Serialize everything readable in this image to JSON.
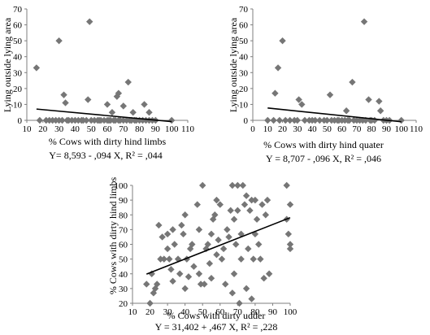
{
  "chart_data": [
    {
      "type": "scatter",
      "title": "",
      "xlabel": "% Cows with dirty hind limbs",
      "ylabel": "Lying outside lying area",
      "equation": "Y= 8,593 - ,094 X, R² = ,044",
      "xlim": [
        10,
        110
      ],
      "ylim": [
        0,
        70
      ],
      "xticks": [
        "10",
        "20",
        "30",
        "40",
        "50",
        "60",
        "70",
        "80",
        "90",
        "100",
        "110"
      ],
      "yticks": [
        "0",
        "10",
        "20",
        "30",
        "40",
        "50",
        "60",
        "70"
      ],
      "marker_color": "#767676",
      "grid": false,
      "trendline": {
        "intercept": 8.593,
        "slope": -0.094
      },
      "points": [
        [
          16,
          33
        ],
        [
          30,
          50
        ],
        [
          33,
          16
        ],
        [
          34,
          11
        ],
        [
          48,
          13
        ],
        [
          49,
          62
        ],
        [
          60,
          10
        ],
        [
          63,
          5
        ],
        [
          66,
          15
        ],
        [
          67,
          17
        ],
        [
          70,
          9
        ],
        [
          73,
          24
        ],
        [
          76,
          5
        ],
        [
          83,
          10
        ],
        [
          86,
          5
        ],
        [
          18,
          0
        ],
        [
          22,
          0
        ],
        [
          24,
          0
        ],
        [
          26,
          0
        ],
        [
          28,
          0
        ],
        [
          30,
          0
        ],
        [
          32,
          0
        ],
        [
          35,
          0
        ],
        [
          36,
          0
        ],
        [
          38,
          0
        ],
        [
          40,
          0
        ],
        [
          42,
          0
        ],
        [
          44,
          0
        ],
        [
          45,
          0
        ],
        [
          47,
          0
        ],
        [
          50,
          0
        ],
        [
          52,
          0
        ],
        [
          54,
          0
        ],
        [
          55,
          0
        ],
        [
          56,
          0
        ],
        [
          58,
          0
        ],
        [
          60,
          0
        ],
        [
          61,
          0
        ],
        [
          62,
          0
        ],
        [
          64,
          0
        ],
        [
          65,
          0
        ],
        [
          67,
          0
        ],
        [
          68,
          0
        ],
        [
          70,
          0
        ],
        [
          72,
          0
        ],
        [
          74,
          0
        ],
        [
          75,
          0
        ],
        [
          77,
          0
        ],
        [
          78,
          0
        ],
        [
          80,
          0
        ],
        [
          82,
          0
        ],
        [
          84,
          0
        ],
        [
          86,
          0
        ],
        [
          88,
          0
        ],
        [
          90,
          0
        ],
        [
          100,
          0
        ]
      ]
    },
    {
      "type": "scatter",
      "title": "",
      "xlabel": "% Cows with dirty hind quater",
      "ylabel": "Lying outside lying area",
      "equation": "Y = 8,707 - ,096 X, R² = ,046",
      "xlim": [
        0,
        110
      ],
      "ylim": [
        0,
        70
      ],
      "xticks": [
        "0",
        "10",
        "20",
        "30",
        "40",
        "50",
        "60",
        "70",
        "80",
        "90",
        "100",
        "110"
      ],
      "yticks": [
        "0",
        "10",
        "20",
        "30",
        "40",
        "50",
        "60",
        "70"
      ],
      "marker_color": "#767676",
      "grid": false,
      "trendline": {
        "intercept": 8.707,
        "slope": -0.096
      },
      "points": [
        [
          15,
          17
        ],
        [
          17,
          33
        ],
        [
          20,
          50
        ],
        [
          31,
          13
        ],
        [
          33,
          10
        ],
        [
          52,
          16
        ],
        [
          63,
          6
        ],
        [
          67,
          24
        ],
        [
          75,
          62
        ],
        [
          78,
          13
        ],
        [
          86,
          6
        ],
        [
          85,
          12
        ],
        [
          10,
          0
        ],
        [
          14,
          0
        ],
        [
          18,
          0
        ],
        [
          22,
          0
        ],
        [
          25,
          0
        ],
        [
          28,
          0
        ],
        [
          30,
          0
        ],
        [
          35,
          0
        ],
        [
          38,
          0
        ],
        [
          40,
          0
        ],
        [
          42,
          0
        ],
        [
          45,
          0
        ],
        [
          48,
          0
        ],
        [
          50,
          0
        ],
        [
          53,
          0
        ],
        [
          55,
          0
        ],
        [
          57,
          0
        ],
        [
          58,
          0
        ],
        [
          60,
          0
        ],
        [
          62,
          0
        ],
        [
          64,
          0
        ],
        [
          65,
          0
        ],
        [
          68,
          0
        ],
        [
          70,
          0
        ],
        [
          72,
          0
        ],
        [
          74,
          0
        ],
        [
          76,
          0
        ],
        [
          79,
          0
        ],
        [
          80,
          0
        ],
        [
          82,
          0
        ],
        [
          88,
          0
        ],
        [
          90,
          0
        ],
        [
          92,
          0
        ],
        [
          100,
          0
        ]
      ]
    },
    {
      "type": "scatter",
      "title": "",
      "xlabel": "% Cows with dirty udder",
      "ylabel": "% Cows with dirty hind limbs",
      "equation": "Y = 31,402 + ,467 X, R² = ,228",
      "xlim": [
        10,
        100
      ],
      "ylim": [
        20,
        100
      ],
      "xticks": [
        "10",
        "20",
        "30",
        "40",
        "50",
        "60",
        "70",
        "80",
        "90",
        "100"
      ],
      "yticks": [
        "20",
        "30",
        "40",
        "50",
        "60",
        "70",
        "80",
        "90",
        "100"
      ],
      "marker_color": "#767676",
      "grid": false,
      "trendline": {
        "intercept": 31.402,
        "slope": 0.467
      },
      "points": [
        [
          18,
          33
        ],
        [
          20,
          20
        ],
        [
          21,
          40
        ],
        [
          22,
          27
        ],
        [
          23,
          30
        ],
        [
          24,
          33
        ],
        [
          25,
          73
        ],
        [
          26,
          50
        ],
        [
          27,
          65
        ],
        [
          28,
          50
        ],
        [
          30,
          57
        ],
        [
          30,
          67
        ],
        [
          31,
          50
        ],
        [
          32,
          43
        ],
        [
          33,
          70
        ],
        [
          33,
          35
        ],
        [
          34,
          60
        ],
        [
          36,
          50
        ],
        [
          37,
          40
        ],
        [
          38,
          73
        ],
        [
          39,
          67
        ],
        [
          40,
          30
        ],
        [
          40,
          80
        ],
        [
          41,
          50
        ],
        [
          42,
          38
        ],
        [
          43,
          57
        ],
        [
          44,
          60
        ],
        [
          45,
          45
        ],
        [
          47,
          87
        ],
        [
          48,
          70
        ],
        [
          48,
          40
        ],
        [
          49,
          33
        ],
        [
          50,
          100
        ],
        [
          51,
          33
        ],
        [
          52,
          57
        ],
        [
          53,
          60
        ],
        [
          54,
          47
        ],
        [
          55,
          37
        ],
        [
          55,
          67
        ],
        [
          56,
          77
        ],
        [
          57,
          80
        ],
        [
          58,
          90
        ],
        [
          58,
          53
        ],
        [
          59,
          63
        ],
        [
          60,
          87
        ],
        [
          61,
          50
        ],
        [
          62,
          57
        ],
        [
          63,
          33
        ],
        [
          64,
          70
        ],
        [
          65,
          65
        ],
        [
          66,
          83
        ],
        [
          67,
          27
        ],
        [
          67,
          100
        ],
        [
          68,
          40
        ],
        [
          68,
          77
        ],
        [
          69,
          60
        ],
        [
          70,
          100
        ],
        [
          70,
          83
        ],
        [
          71,
          20
        ],
        [
          72,
          50
        ],
        [
          72,
          67
        ],
        [
          73,
          100
        ],
        [
          74,
          87
        ],
        [
          75,
          30
        ],
        [
          75,
          93
        ],
        [
          76,
          57
        ],
        [
          77,
          83
        ],
        [
          78,
          23
        ],
        [
          78,
          90
        ],
        [
          79,
          50
        ],
        [
          80,
          67
        ],
        [
          80,
          90
        ],
        [
          81,
          77
        ],
        [
          82,
          60
        ],
        [
          83,
          50
        ],
        [
          84,
          87
        ],
        [
          85,
          37
        ],
        [
          86,
          80
        ],
        [
          87,
          90
        ],
        [
          88,
          40
        ],
        [
          98,
          100
        ],
        [
          98,
          77
        ],
        [
          99,
          67
        ],
        [
          100,
          87
        ],
        [
          100,
          57
        ],
        [
          100,
          60
        ]
      ]
    }
  ]
}
